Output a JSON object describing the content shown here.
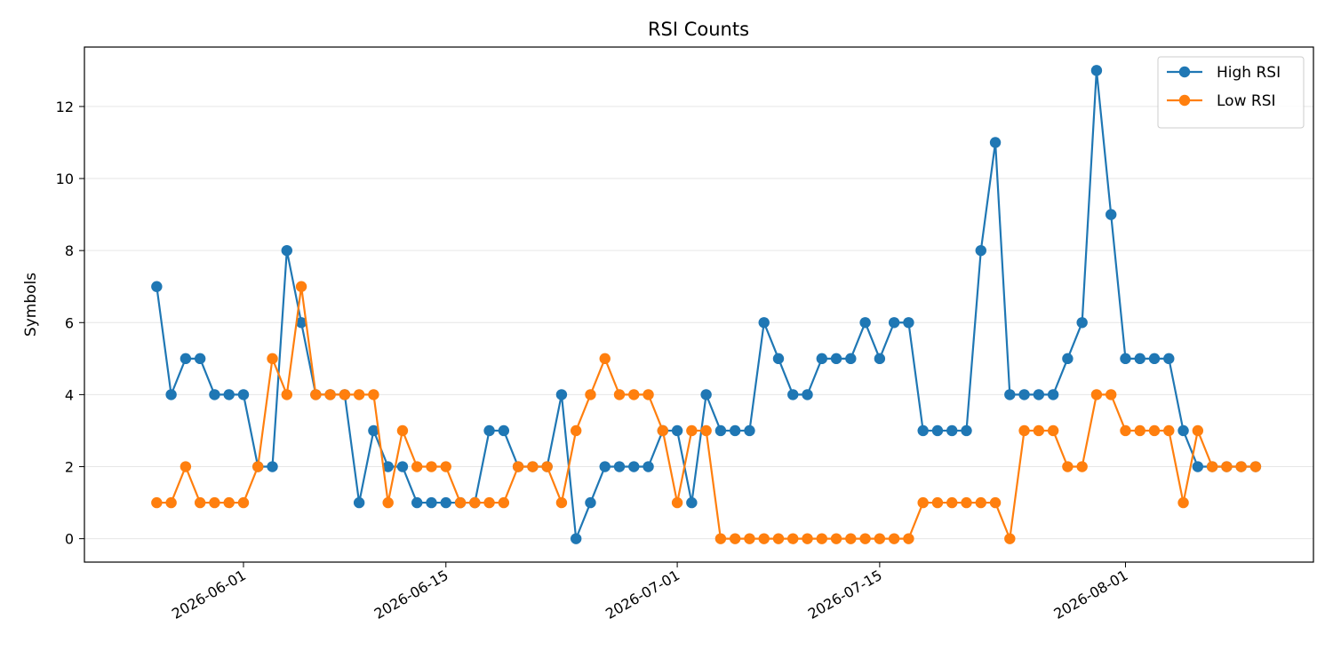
{
  "chart_data": {
    "type": "line",
    "title": "RSI Counts",
    "xlabel": "",
    "ylabel": "Symbols",
    "x_ticks": [
      "2026-06-01",
      "2026-06-15",
      "2026-07-01",
      "2026-07-15",
      "2026-08-01"
    ],
    "y_ticks": [
      0,
      2,
      4,
      6,
      8,
      10,
      12
    ],
    "xlim": [
      "2026-05-21",
      "2026-08-14"
    ],
    "ylim": [
      -0.65,
      13.65
    ],
    "grid": "horizontal",
    "legend_position": "top-right",
    "x": [
      "2026-05-26",
      "2026-05-27",
      "2026-05-28",
      "2026-05-29",
      "2026-05-30",
      "2026-05-31",
      "2026-06-01",
      "2026-06-02",
      "2026-06-03",
      "2026-06-04",
      "2026-06-05",
      "2026-06-06",
      "2026-06-07",
      "2026-06-08",
      "2026-06-09",
      "2026-06-10",
      "2026-06-11",
      "2026-06-12",
      "2026-06-13",
      "2026-06-14",
      "2026-06-15",
      "2026-06-16",
      "2026-06-17",
      "2026-06-18",
      "2026-06-19",
      "2026-06-20",
      "2026-06-21",
      "2026-06-22",
      "2026-06-23",
      "2026-06-24",
      "2026-06-25",
      "2026-06-26",
      "2026-06-27",
      "2026-06-28",
      "2026-06-29",
      "2026-06-30",
      "2026-07-01",
      "2026-07-02",
      "2026-07-03",
      "2026-07-04",
      "2026-07-05",
      "2026-07-06",
      "2026-07-07",
      "2026-07-08",
      "2026-07-09",
      "2026-07-10",
      "2026-07-11",
      "2026-07-12",
      "2026-07-13",
      "2026-07-14",
      "2026-07-15",
      "2026-07-16",
      "2026-07-17",
      "2026-07-18",
      "2026-07-19",
      "2026-07-20",
      "2026-07-21",
      "2026-07-22",
      "2026-07-23",
      "2026-07-24",
      "2026-07-25",
      "2026-07-26",
      "2026-07-27",
      "2026-07-28",
      "2026-07-29",
      "2026-07-30",
      "2026-07-31",
      "2026-08-01",
      "2026-08-02",
      "2026-08-03",
      "2026-08-04",
      "2026-08-05",
      "2026-08-06",
      "2026-08-07",
      "2026-08-08",
      "2026-08-09",
      "2026-08-10"
    ],
    "series": [
      {
        "name": "High RSI",
        "color": "#1f77b4",
        "values": [
          7,
          4,
          5,
          5,
          4,
          4,
          4,
          2,
          2,
          8,
          6,
          4,
          4,
          4,
          1,
          3,
          2,
          2,
          1,
          1,
          1,
          1,
          1,
          3,
          3,
          2,
          2,
          2,
          4,
          0,
          1,
          2,
          2,
          2,
          2,
          3,
          3,
          1,
          4,
          3,
          3,
          3,
          6,
          5,
          4,
          4,
          5,
          5,
          5,
          6,
          5,
          6,
          6,
          3,
          3,
          3,
          3,
          8,
          11,
          4,
          4,
          4,
          4,
          5,
          6,
          13,
          9,
          5,
          5,
          5,
          5,
          3,
          2,
          2,
          2,
          2,
          2
        ]
      },
      {
        "name": "Low RSI",
        "color": "#ff7f0e",
        "values": [
          1,
          1,
          2,
          1,
          1,
          1,
          1,
          2,
          5,
          4,
          7,
          4,
          4,
          4,
          4,
          4,
          1,
          3,
          2,
          2,
          2,
          1,
          1,
          1,
          1,
          2,
          2,
          2,
          1,
          3,
          4,
          5,
          4,
          4,
          4,
          3,
          1,
          3,
          3,
          0,
          0,
          0,
          0,
          0,
          0,
          0,
          0,
          0,
          0,
          0,
          0,
          0,
          0,
          1,
          1,
          1,
          1,
          1,
          1,
          0,
          3,
          3,
          3,
          2,
          2,
          4,
          4,
          3,
          3,
          3,
          3,
          1,
          3,
          2,
          2,
          2,
          2
        ]
      }
    ]
  }
}
